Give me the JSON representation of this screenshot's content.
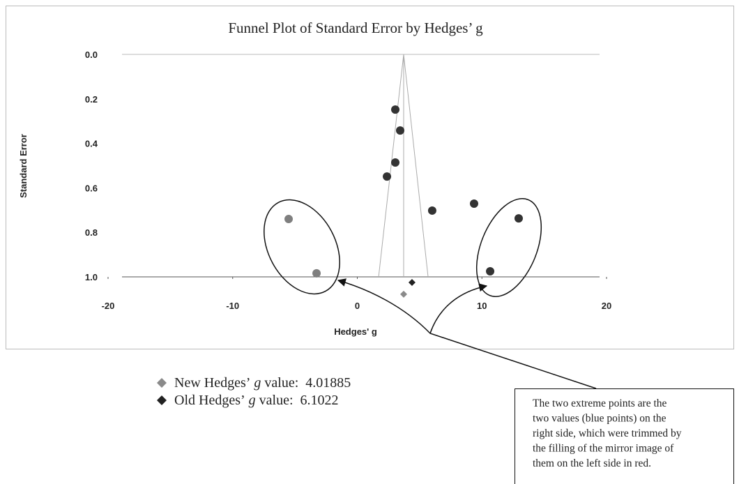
{
  "chart_data": {
    "type": "scatter",
    "title": "Funnel Plot of Standard Error by Hedges’ g",
    "x_label": "Hedges' g",
    "y_label": "Standard Error",
    "xlim": [
      -20,
      20
    ],
    "xticks": [
      -20,
      -10,
      0,
      10,
      20
    ],
    "ylim": [
      0,
      1
    ],
    "y_inverted": true,
    "yticks": [
      {
        "value": 0,
        "label": "0.0"
      },
      {
        "value": 0.2,
        "label": "0.2"
      },
      {
        "value": 0.4,
        "label": "0.4"
      },
      {
        "value": 0.6,
        "label": "0.6"
      },
      {
        "value": 0.8,
        "label": "0.8"
      },
      {
        "value": 1,
        "label": "1.0"
      }
    ],
    "series": [
      {
        "color": "#333333",
        "marker": "circle",
        "x": [
          3.05,
          3.44,
          3.05,
          2.38,
          6.01,
          9.37,
          12.95,
          10.66
        ],
        "values": [
          0.248,
          0.342,
          0.486,
          0.549,
          0.702,
          0.671,
          0.737,
          0.975
        ]
      },
      {
        "color": "#7f7f7f",
        "marker": "circle",
        "x": [
          -5.51,
          -3.27
        ],
        "values": [
          0.74,
          0.984
        ]
      },
      {
        "color": "#8a8a8a",
        "marker": "diamond",
        "x": [
          3.72
        ],
        "values": [
          1.078
        ]
      },
      {
        "color": "#222222",
        "marker": "diamond",
        "x": [
          4.39
        ],
        "values": [
          1.025
        ]
      }
    ],
    "funnel_color": "#aaaaaa",
    "funnel_lines": [
      {
        "x": [
          1.71,
          3.72,
          5.68
        ],
        "values": [
          1,
          0,
          1
        ]
      },
      {
        "x": [
          3.72,
          3.72
        ],
        "values": [
          0,
          1
        ]
      }
    ]
  },
  "legend": [
    {
      "prefix": "New Hedges’",
      "italic": "g",
      "suffix": "value:",
      "value": 4.01885,
      "color": "#8a8a8a"
    },
    {
      "prefix": "Old Hedges’",
      "italic": "g",
      "suffix": "value:",
      "value": 6.1022,
      "color": "#222222"
    }
  ],
  "callout": [
    "The two extreme points are the",
    "two values (blue points) on the",
    "right side, which were trimmed by",
    "the filling of the mirror image of",
    "them on the left side in red."
  ]
}
